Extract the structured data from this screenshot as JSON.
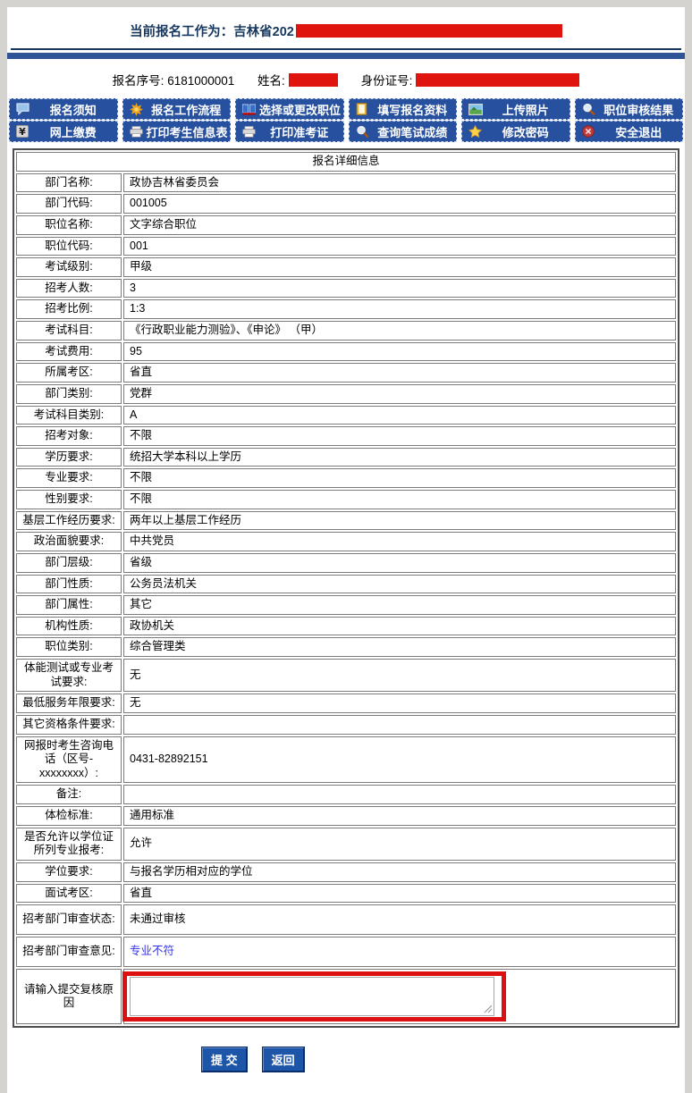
{
  "header": {
    "current_work_label": "当前报名工作为：",
    "current_work_visible": "吉林省202",
    "reg_no_label": "报名序号:",
    "reg_no": "6181000001",
    "name_label": "姓名:",
    "id_label": "身份证号:"
  },
  "nav": {
    "rows": [
      [
        {
          "name": "notice",
          "label": "报名须知",
          "icon": "speech-bubble-icon"
        },
        {
          "name": "workflow",
          "label": "报名工作流程",
          "icon": "flow-star-icon"
        },
        {
          "name": "choose-position",
          "label": "选择或更改职位",
          "icon": "book-icon"
        },
        {
          "name": "fill-info",
          "label": "填写报名资料",
          "icon": "form-icon"
        },
        {
          "name": "upload-photo",
          "label": "上传照片",
          "icon": "photo-icon"
        },
        {
          "name": "review-result",
          "label": "职位审核结果",
          "icon": "magnifier-icon"
        }
      ],
      [
        {
          "name": "online-payment",
          "label": "网上缴费",
          "icon": "yen-icon"
        },
        {
          "name": "print-info",
          "label": "打印考生信息表",
          "icon": "printer-icon"
        },
        {
          "name": "print-ticket",
          "label": "打印准考证",
          "icon": "printer-icon"
        },
        {
          "name": "query-score",
          "label": "查询笔试成绩",
          "icon": "magnifier-icon"
        },
        {
          "name": "change-password",
          "label": "修改密码",
          "icon": "star-icon"
        },
        {
          "name": "logout",
          "label": "安全退出",
          "icon": "logout-icon"
        }
      ]
    ]
  },
  "table": {
    "title": "报名详细信息",
    "rows": [
      {
        "name": "department-name",
        "label": "部门名称:",
        "value": "政协吉林省委员会"
      },
      {
        "name": "department-code",
        "label": "部门代码:",
        "value": "001005"
      },
      {
        "name": "position-name",
        "label": "职位名称:",
        "value": "文字综合职位"
      },
      {
        "name": "position-code",
        "label": "职位代码:",
        "value": "001"
      },
      {
        "name": "exam-level",
        "label": "考试级别:",
        "value": "甲级"
      },
      {
        "name": "recruit-count",
        "label": "招考人数:",
        "value": "3"
      },
      {
        "name": "recruit-ratio",
        "label": "招考比例:",
        "value": "1:3"
      },
      {
        "name": "exam-subjects",
        "label": "考试科目:",
        "value": "《行政职业能力测验》、《申论》 （甲）"
      },
      {
        "name": "exam-fee",
        "label": "考试费用:",
        "value": "95"
      },
      {
        "name": "exam-area",
        "label": "所属考区:",
        "value": "省直"
      },
      {
        "name": "department-category",
        "label": "部门类别:",
        "value": "党群"
      },
      {
        "name": "subject-category",
        "label": "考试科目类别:",
        "value": "A"
      },
      {
        "name": "recruit-target",
        "label": "招考对象:",
        "value": "不限"
      },
      {
        "name": "education-req",
        "label": "学历要求:",
        "value": "统招大学本科以上学历"
      },
      {
        "name": "major-req",
        "label": "专业要求:",
        "value": "不限"
      },
      {
        "name": "gender-req",
        "label": "性别要求:",
        "value": "不限"
      },
      {
        "name": "grassroots-req",
        "label": "基层工作经历要求:",
        "value": "两年以上基层工作经历"
      },
      {
        "name": "political-req",
        "label": "政治面貌要求:",
        "value": "中共党员"
      },
      {
        "name": "department-level",
        "label": "部门层级:",
        "value": "省级"
      },
      {
        "name": "department-nature",
        "label": "部门性质:",
        "value": "公务员法机关"
      },
      {
        "name": "department-attribute",
        "label": "部门属性:",
        "value": "其它"
      },
      {
        "name": "org-nature",
        "label": "机构性质:",
        "value": "政协机关"
      },
      {
        "name": "position-category",
        "label": "职位类别:",
        "value": "综合管理类"
      },
      {
        "name": "physical-test-req",
        "label": "体能测试或专业考试要求:",
        "value": "无"
      },
      {
        "name": "min-service-req",
        "label": "最低服务年限要求:",
        "value": "无"
      },
      {
        "name": "other-req",
        "label": "其它资格条件要求:",
        "value": ""
      },
      {
        "name": "consult-phone",
        "label": "网报时考生咨询电话（区号-xxxxxxxx）:",
        "value": "0431-82892151"
      },
      {
        "name": "remark",
        "label": "备注:",
        "value": ""
      },
      {
        "name": "physical-standard",
        "label": "体检标准:",
        "value": "通用标准"
      },
      {
        "name": "degree-major-allowed",
        "label": "是否允许以学位证所列专业报考:",
        "value": "允许"
      },
      {
        "name": "degree-req",
        "label": "学位要求:",
        "value": "与报名学历相对应的学位"
      },
      {
        "name": "interview-area",
        "label": "面试考区:",
        "value": "省直"
      },
      {
        "name": "review-status",
        "label": "招考部门审查状态:",
        "value": "未通过审核",
        "tall": true
      },
      {
        "name": "review-opinion",
        "label": "招考部门审查意见:",
        "value": "专业不符",
        "tall": true,
        "type": "link"
      }
    ],
    "review_reason_label": "请输入提交复核原因",
    "review_reason_value": ""
  },
  "footer": {
    "submit_label": "提 交",
    "back_label": "返回"
  },
  "colors": {
    "nav_blue": "#27519E",
    "title_navy": "#17375E",
    "divider_blue": "#2F5597",
    "redaction_red": "#E0140F",
    "link_blue": "#3333E6",
    "highlight_red": "#DD1111",
    "button_blue": "#1D56A8"
  }
}
